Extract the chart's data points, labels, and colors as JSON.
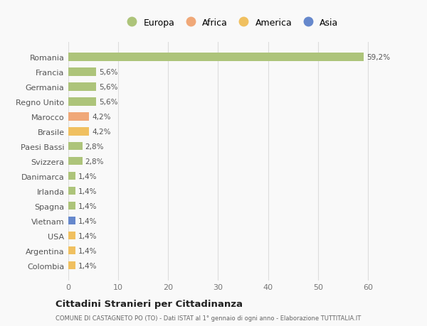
{
  "countries": [
    "Romania",
    "Francia",
    "Germania",
    "Regno Unito",
    "Marocco",
    "Brasile",
    "Paesi Bassi",
    "Svizzera",
    "Danimarca",
    "Irlanda",
    "Spagna",
    "Vietnam",
    "USA",
    "Argentina",
    "Colombia"
  ],
  "values": [
    59.2,
    5.6,
    5.6,
    5.6,
    4.2,
    4.2,
    2.8,
    2.8,
    1.4,
    1.4,
    1.4,
    1.4,
    1.4,
    1.4,
    1.4
  ],
  "labels": [
    "59,2%",
    "5,6%",
    "5,6%",
    "5,6%",
    "4,2%",
    "4,2%",
    "2,8%",
    "2,8%",
    "1,4%",
    "1,4%",
    "1,4%",
    "1,4%",
    "1,4%",
    "1,4%",
    "1,4%"
  ],
  "continents": [
    "Europa",
    "Europa",
    "Europa",
    "Europa",
    "Africa",
    "America",
    "Europa",
    "Europa",
    "Europa",
    "Europa",
    "Europa",
    "Asia",
    "America",
    "America",
    "America"
  ],
  "colors": {
    "Europa": "#adc47a",
    "Africa": "#f0a878",
    "America": "#f0c060",
    "Asia": "#6688cc"
  },
  "title": "Cittadini Stranieri per Cittadinanza",
  "subtitle": "COMUNE DI CASTAGNETO PO (TO) - Dati ISTAT al 1° gennaio di ogni anno - Elaborazione TUTTITALIA.IT",
  "xlim": [
    0,
    65
  ],
  "xticks": [
    0,
    10,
    20,
    30,
    40,
    50,
    60
  ],
  "background_color": "#f9f9f9",
  "grid_color": "#dddddd",
  "bar_height": 0.55
}
